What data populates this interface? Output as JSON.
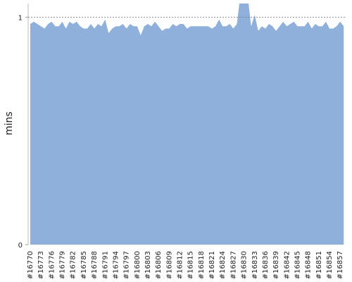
{
  "chart_data": {
    "type": "area",
    "y_label": "mins",
    "color": "#8fb0da",
    "categories": [
      "#16770",
      null,
      null,
      "#16773",
      null,
      null,
      "#16776",
      null,
      null,
      "#16779",
      null,
      null,
      "#16782",
      null,
      null,
      "#16785",
      null,
      null,
      "#16788",
      null,
      null,
      "#16791",
      null,
      null,
      "#16794",
      null,
      null,
      "#16797",
      null,
      null,
      "#16800",
      null,
      null,
      "#16803",
      null,
      null,
      "#16806",
      null,
      null,
      "#16809",
      null,
      null,
      "#16812",
      null,
      null,
      "#16815",
      null,
      null,
      "#16818",
      null,
      null,
      "#16821",
      null,
      null,
      "#16824",
      null,
      null,
      "#16827",
      null,
      null,
      "#16830",
      null,
      null,
      "#16833",
      null,
      null,
      "#16836",
      null,
      null,
      "#16839",
      null,
      null,
      "#16842",
      null,
      null,
      "#16845",
      null,
      null,
      "#16848",
      null,
      null,
      "#16851",
      null,
      null,
      "#16854",
      null,
      null,
      "#16857",
      null
    ],
    "values": [
      0.97,
      0.98,
      0.97,
      0.96,
      0.95,
      0.97,
      0.98,
      0.96,
      0.96,
      0.98,
      0.95,
      0.98,
      0.97,
      0.98,
      0.96,
      0.95,
      0.95,
      0.97,
      0.95,
      0.97,
      0.96,
      0.99,
      0.93,
      0.95,
      0.96,
      0.96,
      0.97,
      0.95,
      0.97,
      0.96,
      0.96,
      0.92,
      0.96,
      0.97,
      0.96,
      0.98,
      0.96,
      0.94,
      0.95,
      0.95,
      0.97,
      0.96,
      0.97,
      0.97,
      0.95,
      0.96,
      0.96,
      0.96,
      0.96,
      0.96,
      0.96,
      0.95,
      0.96,
      0.99,
      0.96,
      0.96,
      0.97,
      0.95,
      0.97,
      1.1,
      1.1,
      1.1,
      0.96,
      1.01,
      0.94,
      0.96,
      0.95,
      0.97,
      0.96,
      0.94,
      0.96,
      0.98,
      0.96,
      0.97,
      0.98,
      0.96,
      0.96,
      0.96,
      0.98,
      0.95,
      0.97,
      0.96,
      0.96,
      0.98,
      0.95,
      0.95,
      0.96,
      0.98,
      0.96
    ],
    "ylim": [
      0,
      1.06
    ],
    "yticks": [
      0,
      1
    ],
    "grid": true
  }
}
